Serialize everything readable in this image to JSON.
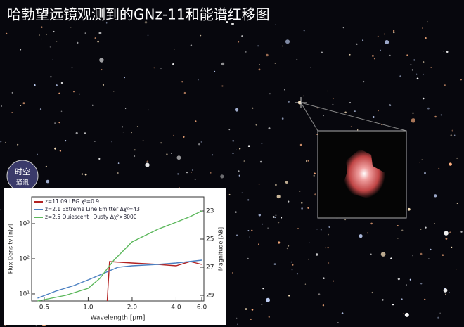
{
  "title": "哈勃望远镜观测到的GNz-11和能谱红移图",
  "watermark": [
    "时空",
    "通讯"
  ],
  "chart_data": {
    "type": "line",
    "x_label": "Wavelength [μm]",
    "y_label": "Flux Density [nJy]",
    "y2_label": "Magnitude [AB]",
    "xscale": "log",
    "yscale": "log",
    "xlim": [
      0.41,
      6.2
    ],
    "xticks": [
      0.5,
      {
        "value": 1,
        "label": "1.0"
      },
      {
        "value": 2,
        "label": "2.0"
      },
      {
        "value": 4,
        "label": "4.0"
      },
      {
        "value": 6,
        "label": "6.0"
      }
    ],
    "ylim": [
      6.3,
      5750
    ],
    "yticks": [
      {
        "value": 10,
        "label": "10¹"
      },
      {
        "value": 100,
        "label": "10²"
      },
      {
        "value": 1000,
        "label": "10³"
      }
    ],
    "y2lim": [
      29.4,
      22
    ],
    "y2ticks": [
      23,
      25,
      27,
      29
    ],
    "series": [
      {
        "name": "z=11.09 LBG  χ²=0.9",
        "color": "#b22222",
        "axis": "y2",
        "x": [
          1.35,
          1.4,
          2,
          3,
          4,
          5,
          6
        ],
        "values": [
          29.4,
          26.6,
          26.7,
          26.8,
          26.9,
          26.6,
          26.8
        ]
      },
      {
        "name": "z=2.1 Extreme Line Emitter  Δχ²=43",
        "color": "#4a7fc1",
        "axis": "y2",
        "x": [
          0.45,
          0.6,
          0.8,
          1.0,
          1.3,
          1.6,
          2.0,
          3,
          4,
          6
        ],
        "values": [
          29.2,
          28.7,
          28.3,
          27.9,
          27.4,
          27.0,
          26.9,
          26.8,
          26.7,
          26.5
        ]
      },
      {
        "name": "z=2.5 Quiescent+Dusty  Δχ²>8000",
        "color": "#5cb85c",
        "axis": "y2",
        "x": [
          0.45,
          0.7,
          1.0,
          1.2,
          1.5,
          2,
          3,
          4,
          5,
          6
        ],
        "values": [
          29.4,
          29.0,
          28.5,
          27.8,
          26.5,
          25.2,
          24.3,
          23.8,
          23.4,
          23.0
        ]
      }
    ]
  }
}
